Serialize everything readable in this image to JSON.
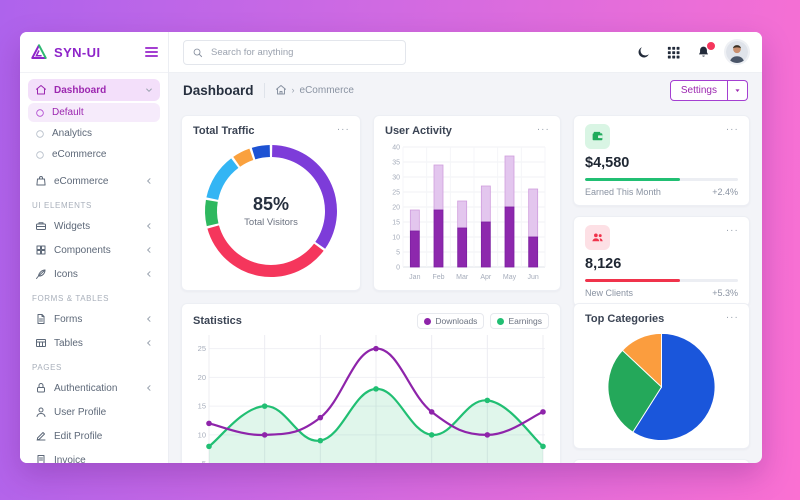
{
  "app": {
    "name": "SYN-UI"
  },
  "sidebar": {
    "logo_text": "SYN-UI",
    "sections": [
      {
        "label": "",
        "items": [
          {
            "label": "Dashboard",
            "icon": "home",
            "active": true,
            "chevron": "down",
            "children": [
              {
                "label": "Default",
                "active": true
              },
              {
                "label": "Analytics",
                "active": false
              },
              {
                "label": "eCommerce",
                "active": false
              }
            ]
          },
          {
            "label": "eCommerce",
            "icon": "bag",
            "chevron": "left",
            "gap_before": true
          }
        ]
      },
      {
        "label": "UI ELEMENTS",
        "items": [
          {
            "label": "Widgets",
            "icon": "briefcase",
            "chevron": "left"
          },
          {
            "label": "Components",
            "icon": "components",
            "chevron": "left"
          },
          {
            "label": "Icons",
            "icon": "feather",
            "chevron": "left"
          }
        ]
      },
      {
        "label": "FORMS & TABLES",
        "items": [
          {
            "label": "Forms",
            "icon": "file",
            "chevron": "left"
          },
          {
            "label": "Tables",
            "icon": "table",
            "chevron": "left"
          }
        ]
      },
      {
        "label": "PAGES",
        "items": [
          {
            "label": "Authentication",
            "icon": "lock",
            "chevron": "left"
          },
          {
            "label": "User Profile",
            "icon": "user"
          },
          {
            "label": "Edit Profile",
            "icon": "edit"
          },
          {
            "label": "Invoice",
            "icon": "invoice"
          }
        ]
      }
    ]
  },
  "topbar": {
    "search_placeholder": "Search for anything",
    "notification_badge": true
  },
  "breadcrumb": {
    "title": "Dashboard",
    "page": "eCommerce",
    "settings_label": "Settings"
  },
  "cards": {
    "total_traffic": {
      "title": "Total Traffic",
      "center_value": "85%",
      "center_label": "Total Visitors"
    },
    "user_activity": {
      "title": "User Activity"
    },
    "earned": {
      "value": "$4,580",
      "label": "Earned This Month",
      "delta": "+2.4%",
      "accent": "#21bf73",
      "progress": 62
    },
    "clients": {
      "value": "8,126",
      "label": "New Clients",
      "delta": "+5.3%",
      "accent": "#f0334b",
      "progress": 62
    },
    "statistics": {
      "title": "Statistics",
      "legend": [
        {
          "label": "Downloads",
          "color": "#8e24aa"
        },
        {
          "label": "Earnings",
          "color": "#21bf73"
        }
      ]
    },
    "top_categories": {
      "title": "Top Categories"
    }
  },
  "menu_dots": "...",
  "chart_data": [
    {
      "id": "total-traffic",
      "type": "donut",
      "title": "Total Traffic",
      "center_value": "85%",
      "center_label": "Total Visitors",
      "values": [
        35,
        36,
        7,
        12,
        5,
        5
      ],
      "colors": [
        "#7d3cd9",
        "#f5365c",
        "#2eb85f",
        "#33b5f4",
        "#faa13e",
        "#1d52d3"
      ],
      "segment_order": "clockwise-from-top"
    },
    {
      "id": "user-activity",
      "type": "bar",
      "title": "User Activity",
      "categories": [
        "Jan",
        "Feb",
        "Mar",
        "Apr",
        "May",
        "Jun"
      ],
      "series": [
        {
          "name": "solid",
          "color": "#8d28ad",
          "stroke": "#7c1fa0",
          "values": [
            12,
            19,
            13,
            15,
            20,
            10
          ]
        },
        {
          "name": "light",
          "color": "#e3c6ee",
          "stroke": "#cf9ddd",
          "values": [
            7,
            15,
            9,
            12,
            17,
            16
          ]
        }
      ],
      "stacked": true,
      "ylim": [
        0,
        40
      ],
      "ytick_step": 5,
      "grid": true
    },
    {
      "id": "statistics",
      "type": "line",
      "title": "Statistics",
      "x_points": 7,
      "categories": [],
      "series": [
        {
          "name": "Earnings",
          "color": "#21bf73",
          "area": true,
          "values": [
            8,
            15,
            9,
            18,
            10,
            16,
            8
          ]
        },
        {
          "name": "Downloads",
          "color": "#8e24aa",
          "area": false,
          "values": [
            12,
            10,
            13,
            25,
            14,
            10,
            14
          ]
        }
      ],
      "yticks": [
        25,
        20,
        15,
        10,
        5
      ],
      "grid": true,
      "legend_position": "top-right"
    },
    {
      "id": "top-categories",
      "type": "pie",
      "title": "Top Categories",
      "values": [
        59,
        28,
        13
      ],
      "colors": [
        "#1a56db",
        "#24a85a",
        "#fb9d3e"
      ],
      "segment_order": "clockwise-from-top"
    }
  ]
}
